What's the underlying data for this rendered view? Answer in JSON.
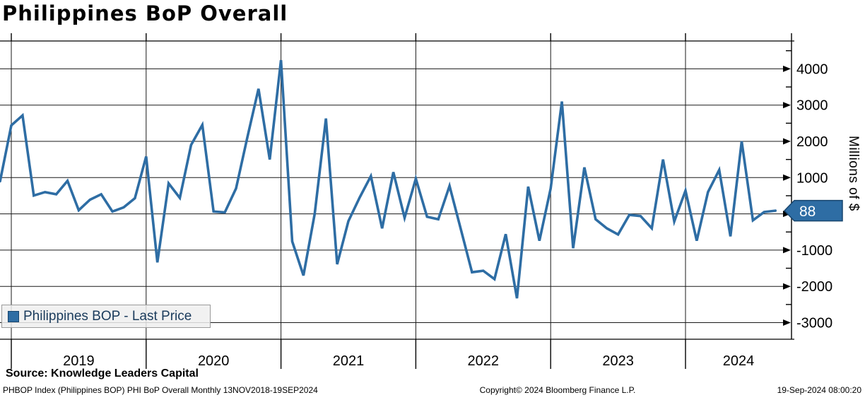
{
  "title": "Philippines BoP Overall",
  "legend": {
    "label": "Philippines BOP - Last Price"
  },
  "source_line": "Source: Knowledge Leaders Capital",
  "footer": {
    "left": "PHBOP Index (Philippines BOP) PHI BoP Overall  Monthly 13NOV2018-19SEP2024",
    "center": "Copyright© 2024 Bloomberg Finance L.P.",
    "right": "19-Sep-2024 08:00:20"
  },
  "last_price_badge": {
    "value": "88"
  },
  "colors": {
    "line": "#2e6da4",
    "badge_bg": "#2e6da4",
    "badge_border": "#17456e",
    "badge_text": "#ffffff",
    "grid": "#1a1a1a",
    "text": "#000000"
  },
  "chart_data": {
    "type": "line",
    "title": "Philippines BoP Overall",
    "series_name": "Philippines BOP - Last Price",
    "ylabel": "Millions of $",
    "ylim": [
      -3300,
      4650
    ],
    "y_major_ticks": [
      4000,
      3000,
      2000,
      1000,
      0,
      -1000,
      -2000,
      -3000
    ],
    "y_minor_ticks": [
      4500,
      3500,
      2500,
      1500,
      500,
      -500,
      -1500,
      -2500
    ],
    "x_year_labels": [
      "2019",
      "2020",
      "2021",
      "2022",
      "2023",
      "2024"
    ],
    "grid": true,
    "legend_position": "bottom-left",
    "frequency": "Monthly",
    "range": "13NOV2018-19SEP2024",
    "last_price": 88,
    "months": [
      "2018-11",
      "2018-12",
      "2019-01",
      "2019-02",
      "2019-03",
      "2019-04",
      "2019-05",
      "2019-06",
      "2019-07",
      "2019-08",
      "2019-09",
      "2019-10",
      "2019-11",
      "2019-12",
      "2020-01",
      "2020-02",
      "2020-03",
      "2020-04",
      "2020-05",
      "2020-06",
      "2020-07",
      "2020-08",
      "2020-09",
      "2020-10",
      "2020-11",
      "2020-12",
      "2021-01",
      "2021-02",
      "2021-03",
      "2021-04",
      "2021-05",
      "2021-06",
      "2021-07",
      "2021-08",
      "2021-09",
      "2021-10",
      "2021-11",
      "2021-12",
      "2022-01",
      "2022-02",
      "2022-03",
      "2022-04",
      "2022-05",
      "2022-06",
      "2022-07",
      "2022-08",
      "2022-09",
      "2022-10",
      "2022-11",
      "2022-12",
      "2023-01",
      "2023-02",
      "2023-03",
      "2023-04",
      "2023-05",
      "2023-06",
      "2023-07",
      "2023-08",
      "2023-09",
      "2023-10",
      "2023-11",
      "2023-12",
      "2024-01",
      "2024-02",
      "2024-03",
      "2024-04",
      "2024-05",
      "2024-06",
      "2024-07",
      "2024-08"
    ],
    "values": [
      900,
      2440,
      2715,
      505,
      600,
      540,
      910,
      100,
      390,
      540,
      65,
      180,
      430,
      1580,
      -1340,
      840,
      440,
      1900,
      2455,
      65,
      40,
      700,
      2100,
      3450,
      1500,
      4240,
      -760,
      -1700,
      0,
      2630,
      -1390,
      -200,
      450,
      1040,
      -400,
      1150,
      -110,
      970,
      -80,
      -150,
      770,
      -420,
      -1610,
      -1570,
      -1800,
      -560,
      -2330,
      750,
      -740,
      700,
      3100,
      -950,
      1280,
      -150,
      -400,
      -570,
      -30,
      -60,
      -400,
      1500,
      -210,
      640,
      -740,
      600,
      1210,
      -620,
      2000,
      -180,
      50,
      88
    ]
  }
}
